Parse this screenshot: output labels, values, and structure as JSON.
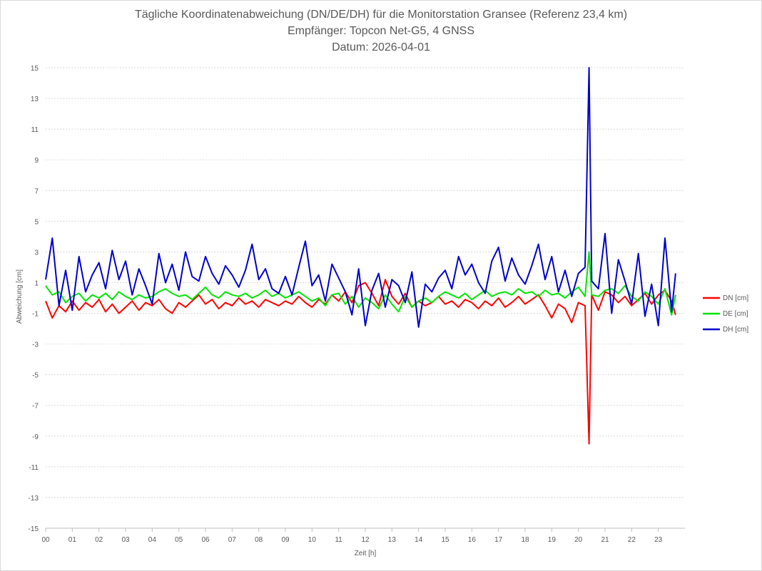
{
  "chart_data": {
    "type": "line",
    "title": "Tägliche Koordinatenabweichung (DN/DE/DH) für die Monitorstation Gransee (Referenz 23,4 km)",
    "subtitle": "Empfänger: Topcon Net-G5, 4 GNSS",
    "date_line": "Datum: 2026-04-01",
    "xlabel": "Zeit [h]",
    "ylabel": "Abweichung [cm]",
    "xlim": [
      0,
      24
    ],
    "ylim": [
      -15,
      15
    ],
    "x_ticks": [
      "00",
      "01",
      "02",
      "03",
      "04",
      "05",
      "06",
      "07",
      "08",
      "09",
      "10",
      "11",
      "12",
      "13",
      "14",
      "15",
      "16",
      "17",
      "18",
      "19",
      "20",
      "21",
      "22",
      "23"
    ],
    "y_ticks": [
      15,
      13,
      11,
      9,
      7,
      5,
      3,
      1,
      -1,
      -3,
      -5,
      -7,
      -9,
      -11,
      -13,
      -15
    ],
    "grid": "horizontal dotted",
    "legend_position": "right",
    "series": [
      {
        "name": "DN [cm]",
        "color": "#ff0000",
        "x": [
          0,
          0.25,
          0.5,
          0.75,
          1,
          1.25,
          1.5,
          1.75,
          2,
          2.25,
          2.5,
          2.75,
          3,
          3.25,
          3.5,
          3.75,
          4,
          4.25,
          4.5,
          4.75,
          5,
          5.25,
          5.5,
          5.75,
          6,
          6.25,
          6.5,
          6.75,
          7,
          7.25,
          7.5,
          7.75,
          8,
          8.25,
          8.5,
          8.75,
          9,
          9.25,
          9.5,
          9.75,
          10,
          10.25,
          10.5,
          10.75,
          11,
          11.25,
          11.5,
          11.75,
          12,
          12.25,
          12.5,
          12.75,
          13,
          13.25,
          13.5,
          13.75,
          14,
          14.25,
          14.5,
          14.75,
          15,
          15.25,
          15.5,
          15.75,
          16,
          16.25,
          16.5,
          16.75,
          17,
          17.25,
          17.5,
          17.75,
          18,
          18.25,
          18.5,
          18.75,
          19,
          19.25,
          19.5,
          19.75,
          20,
          20.25,
          20.4,
          20.5,
          20.75,
          21,
          21.25,
          21.5,
          21.75,
          22,
          22.25,
          22.5,
          22.75,
          23,
          23.25,
          23.5,
          23.65
        ],
        "y": [
          -0.2,
          -1.3,
          -0.5,
          -0.9,
          -0.2,
          -0.8,
          -0.3,
          -0.6,
          -0.1,
          -0.9,
          -0.4,
          -1.0,
          -0.6,
          -0.2,
          -0.8,
          -0.3,
          -0.5,
          -0.1,
          -0.7,
          -1.0,
          -0.3,
          -0.6,
          -0.2,
          0.2,
          -0.4,
          -0.1,
          -0.7,
          -0.3,
          -0.5,
          0.0,
          -0.4,
          -0.2,
          -0.6,
          -0.1,
          -0.3,
          -0.5,
          -0.2,
          -0.4,
          0.1,
          -0.3,
          -0.6,
          -0.1,
          -0.4,
          0.2,
          -0.2,
          0.4,
          -0.3,
          0.8,
          1.0,
          0.3,
          -0.5,
          1.2,
          0.1,
          -0.4,
          0.3,
          -0.6,
          -0.2,
          -0.5,
          -0.3,
          0.1,
          -0.4,
          -0.2,
          -0.6,
          -0.1,
          -0.3,
          -0.7,
          -0.2,
          -0.5,
          0.0,
          -0.6,
          -0.3,
          0.1,
          -0.4,
          -0.1,
          0.2,
          -0.5,
          -1.3,
          -0.4,
          -0.7,
          -1.6,
          -0.3,
          -0.5,
          -9.5,
          0.2,
          -0.8,
          0.4,
          0.2,
          -0.3,
          0.1,
          -0.5,
          -0.1,
          0.3,
          -0.4,
          0.2,
          0.5,
          -0.2,
          -1.1
        ],
        "width": 2
      },
      {
        "name": "DE [cm]",
        "color": "#00e600",
        "x": [
          0,
          0.25,
          0.5,
          0.75,
          1,
          1.25,
          1.5,
          1.75,
          2,
          2.25,
          2.5,
          2.75,
          3,
          3.25,
          3.5,
          3.75,
          4,
          4.25,
          4.5,
          4.75,
          5,
          5.25,
          5.5,
          5.75,
          6,
          6.25,
          6.5,
          6.75,
          7,
          7.25,
          7.5,
          7.75,
          8,
          8.25,
          8.5,
          8.75,
          9,
          9.25,
          9.5,
          9.75,
          10,
          10.25,
          10.5,
          10.75,
          11,
          11.25,
          11.5,
          11.75,
          12,
          12.25,
          12.5,
          12.75,
          13,
          13.25,
          13.5,
          13.75,
          14,
          14.25,
          14.5,
          14.75,
          15,
          15.25,
          15.5,
          15.75,
          16,
          16.25,
          16.5,
          16.75,
          17,
          17.25,
          17.5,
          17.75,
          18,
          18.25,
          18.5,
          18.75,
          19,
          19.25,
          19.5,
          19.75,
          20,
          20.25,
          20.4,
          20.5,
          20.75,
          21,
          21.25,
          21.5,
          21.75,
          22,
          22.25,
          22.5,
          22.75,
          23,
          23.25,
          23.5,
          23.65
        ],
        "y": [
          0.8,
          0.2,
          0.4,
          -0.3,
          0.1,
          0.3,
          -0.2,
          0.2,
          0.0,
          0.3,
          -0.1,
          0.4,
          0.1,
          -0.1,
          0.2,
          0.0,
          0.1,
          0.4,
          0.6,
          0.3,
          0.1,
          0.2,
          -0.1,
          0.3,
          0.7,
          0.2,
          0.0,
          0.4,
          0.2,
          0.1,
          0.3,
          0.0,
          0.2,
          0.5,
          0.1,
          0.3,
          0.0,
          0.2,
          0.4,
          0.1,
          -0.2,
          0.0,
          -0.5,
          0.2,
          0.3,
          -0.4,
          0.1,
          -0.6,
          0.0,
          -0.3,
          -0.7,
          0.2,
          -0.4,
          -0.9,
          0.1,
          -0.6,
          -0.2,
          0.0,
          -0.3,
          0.1,
          0.4,
          0.2,
          0.0,
          0.3,
          -0.1,
          0.2,
          0.5,
          0.1,
          0.3,
          0.4,
          0.2,
          0.6,
          0.3,
          0.4,
          0.1,
          0.5,
          0.2,
          0.3,
          0.0,
          0.4,
          0.7,
          0.1,
          3.0,
          0.2,
          0.1,
          0.5,
          0.6,
          0.3,
          0.8,
          0.1,
          -0.2,
          0.4,
          0.1,
          -0.4,
          0.6,
          -1.1,
          0.2
        ],
        "width": 2
      },
      {
        "name": "DH [cm]",
        "color": "#0000cc",
        "x": [
          0,
          0.25,
          0.5,
          0.75,
          1,
          1.25,
          1.5,
          1.75,
          2,
          2.25,
          2.5,
          2.75,
          3,
          3.25,
          3.5,
          3.75,
          4,
          4.25,
          4.5,
          4.75,
          5,
          5.25,
          5.5,
          5.75,
          6,
          6.25,
          6.5,
          6.75,
          7,
          7.25,
          7.5,
          7.75,
          8,
          8.25,
          8.5,
          8.75,
          9,
          9.25,
          9.5,
          9.75,
          10,
          10.25,
          10.5,
          10.75,
          11,
          11.25,
          11.5,
          11.75,
          12,
          12.25,
          12.5,
          12.75,
          13,
          13.25,
          13.5,
          13.75,
          14,
          14.25,
          14.5,
          14.75,
          15,
          15.25,
          15.5,
          15.75,
          16,
          16.25,
          16.5,
          16.75,
          17,
          17.25,
          17.5,
          17.75,
          18,
          18.25,
          18.5,
          18.75,
          19,
          19.25,
          19.5,
          19.75,
          20,
          20.25,
          20.4,
          20.5,
          20.75,
          21,
          21.25,
          21.5,
          21.75,
          22,
          22.25,
          22.5,
          22.75,
          23,
          23.25,
          23.5,
          23.65
        ],
        "y": [
          1.2,
          3.9,
          -0.5,
          1.8,
          -0.8,
          2.7,
          0.4,
          1.5,
          2.3,
          0.6,
          3.1,
          1.2,
          2.4,
          0.2,
          1.9,
          0.8,
          -0.4,
          2.9,
          1.0,
          2.2,
          0.5,
          3.0,
          1.4,
          1.1,
          2.7,
          1.6,
          0.9,
          2.1,
          1.5,
          0.7,
          1.8,
          3.5,
          1.2,
          1.9,
          0.6,
          0.3,
          1.4,
          0.2,
          2.0,
          3.7,
          0.8,
          1.5,
          -0.2,
          2.2,
          1.3,
          0.4,
          -1.1,
          1.9,
          -1.8,
          0.5,
          1.6,
          -0.6,
          1.2,
          0.8,
          -0.3,
          1.7,
          -1.9,
          0.9,
          0.4,
          1.3,
          1.8,
          0.6,
          2.7,
          1.5,
          2.2,
          1.0,
          0.3,
          2.4,
          3.3,
          1.1,
          2.6,
          1.5,
          0.9,
          2.1,
          3.5,
          1.2,
          2.7,
          0.4,
          1.8,
          0.1,
          1.6,
          2.0,
          15.0,
          1.1,
          0.6,
          4.2,
          -1.0,
          2.5,
          1.1,
          -0.4,
          2.9,
          -1.2,
          0.9,
          -1.8,
          3.9,
          -0.9,
          1.6
        ],
        "width": 2
      }
    ]
  }
}
